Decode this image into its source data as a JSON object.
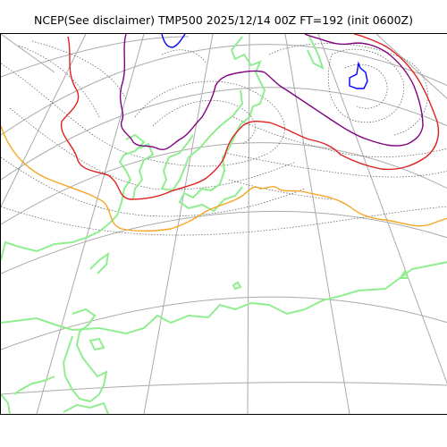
{
  "title": "NCEP(See disclaimer) TMP500 2025/12/14 00Z FT=192 (init 0600Z)",
  "colors": {
    "background": "#ffffff",
    "graticule": "#aaaaaa",
    "coastline": "#90ee90",
    "contour_dotted": "#555555",
    "isotherm_orange": "#f5a623",
    "isotherm_red": "#e02020",
    "isotherm_purple": "#800080",
    "isotherm_blue": "#0000ff"
  }
}
